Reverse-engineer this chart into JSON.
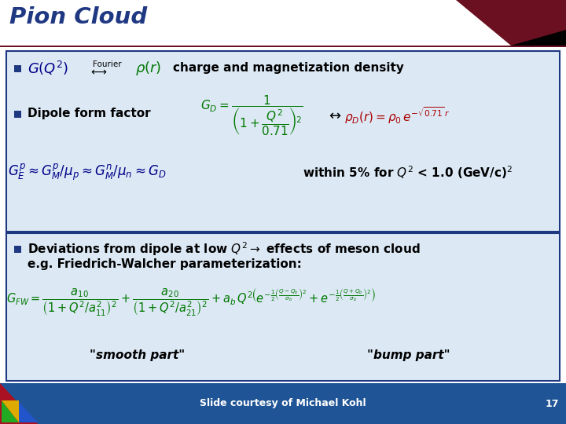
{
  "title": "Pion Cloud",
  "title_color": "#1f3882",
  "bg_color": "#ffffff",
  "box1_bg": "#dce9f5",
  "box2_bg": "#dce9f5",
  "box_border_color": "#1f3882",
  "bullet_color": "#1f3882",
  "text_color": "#000000",
  "green_color": "#007700",
  "red_color": "#aa0000",
  "blue_math_color": "#000088",
  "dark_red": "#6b1020",
  "black": "#000000",
  "footer_bg": "#1f5496",
  "footer_text": "Slide courtesy of Michael Kohl",
  "footer_page": "17",
  "title_underline_color": "#6b1020",
  "logo_red": "#aa1122",
  "logo_green": "#22aa22",
  "logo_blue": "#2255cc",
  "logo_yellow": "#ddaa00"
}
